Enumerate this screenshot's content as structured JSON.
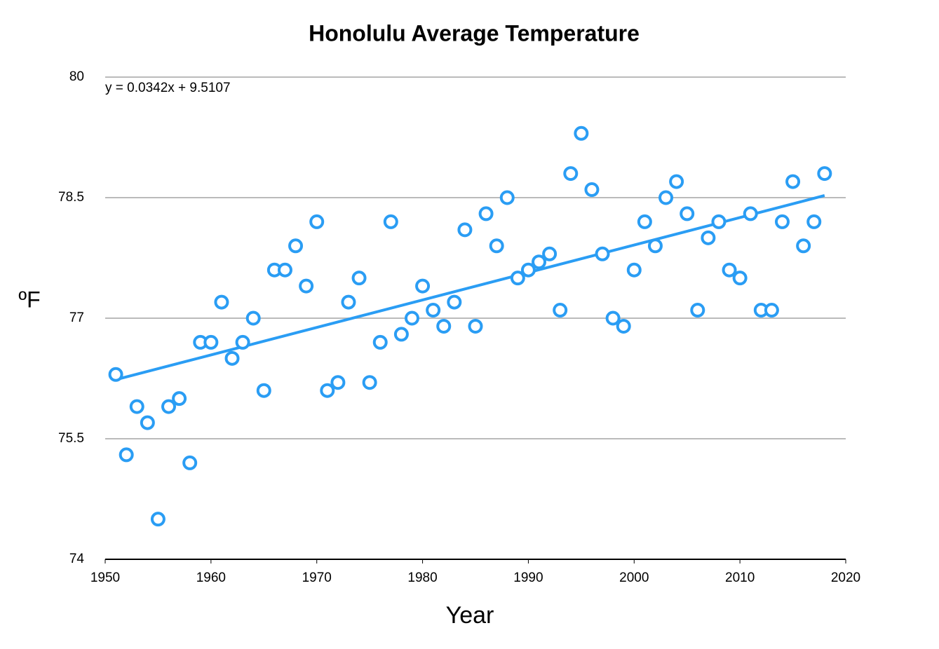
{
  "chart_data": {
    "type": "scatter",
    "title": "Honolulu Average Temperature",
    "x_label": "Year",
    "y_label": "ºF",
    "trendline": {
      "label": "y = 0.0342x + 9.5107",
      "slope": 0.0342,
      "intercept": 9.5107
    },
    "color": "#2a9df4",
    "x": [
      1951,
      1952,
      1953,
      1954,
      1955,
      1956,
      1957,
      1958,
      1959,
      1960,
      1961,
      1962,
      1963,
      1964,
      1965,
      1966,
      1967,
      1968,
      1969,
      1970,
      1971,
      1972,
      1973,
      1974,
      1975,
      1976,
      1977,
      1978,
      1979,
      1980,
      1981,
      1982,
      1983,
      1984,
      1985,
      1986,
      1987,
      1988,
      1989,
      1990,
      1991,
      1992,
      1993,
      1994,
      1995,
      1996,
      1997,
      1998,
      1999,
      2000,
      2001,
      2002,
      2003,
      2004,
      2005,
      2006,
      2007,
      2008,
      2009,
      2010,
      2011,
      2012,
      2013,
      2014,
      2015,
      2016,
      2017,
      2018
    ],
    "values": [
      76.3,
      75.3,
      75.9,
      75.7,
      74.5,
      75.9,
      76.0,
      75.2,
      76.7,
      76.7,
      77.2,
      76.5,
      76.7,
      77.0,
      76.1,
      77.6,
      77.6,
      77.9,
      77.4,
      78.2,
      76.1,
      76.2,
      77.2,
      77.5,
      76.2,
      76.7,
      78.2,
      76.8,
      77.0,
      77.4,
      77.1,
      76.9,
      77.2,
      78.1,
      76.9,
      78.3,
      77.9,
      78.5,
      77.5,
      77.6,
      77.7,
      77.8,
      77.1,
      78.8,
      79.3,
      78.6,
      77.8,
      77.0,
      76.9,
      77.6,
      78.2,
      77.9,
      78.5,
      78.7,
      78.3,
      77.1,
      78.0,
      78.2,
      77.6,
      77.5,
      78.3,
      77.1,
      77.1,
      78.2,
      78.7,
      77.9,
      78.2,
      78.8
    ],
    "xlim": [
      1950,
      2020
    ],
    "xticks": [
      1950,
      1960,
      1970,
      1980,
      1990,
      2000,
      2010,
      2020
    ],
    "ylim": [
      74,
      80
    ],
    "yticks": [
      74,
      75.5,
      77,
      78.5,
      80
    ],
    "grid": true
  }
}
